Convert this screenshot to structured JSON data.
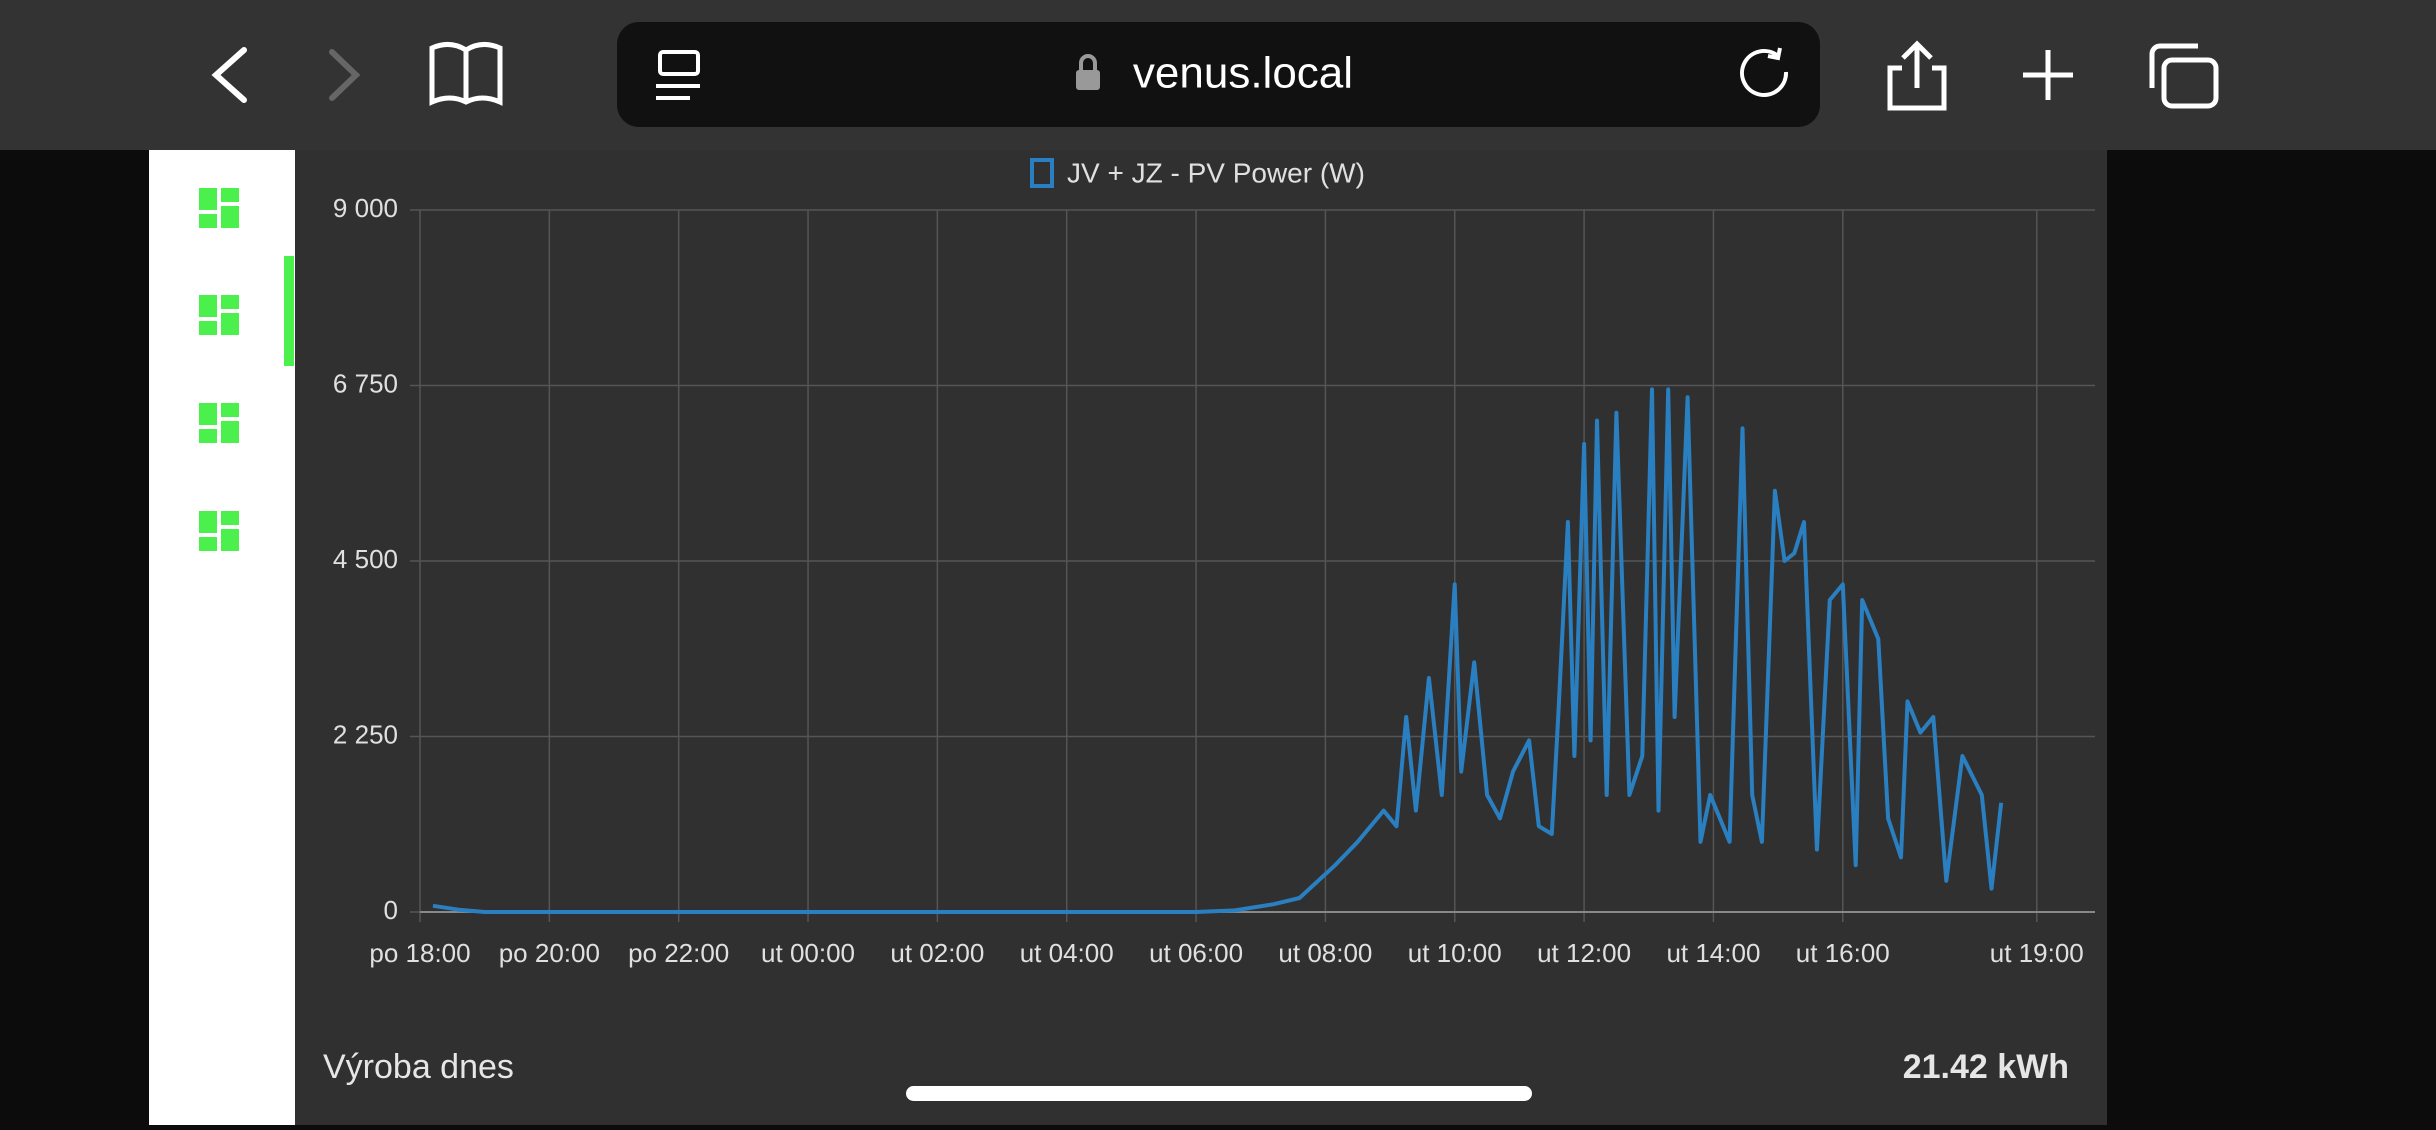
{
  "browser": {
    "url": "venus.local"
  },
  "chart_data": {
    "type": "line",
    "x": [
      18.2,
      18.6,
      19,
      25,
      30,
      30.6,
      31.2,
      31.6,
      32.15,
      32.5,
      32.9,
      33.1,
      33.25,
      33.4,
      33.6,
      33.8,
      34.0,
      34.1,
      34.3,
      34.5,
      34.7,
      34.9,
      35.15,
      35.3,
      35.5,
      35.6,
      35.75,
      35.85,
      36.0,
      36.1,
      36.2,
      36.35,
      36.5,
      36.7,
      36.9,
      37.05,
      37.15,
      37.3,
      37.4,
      37.6,
      37.8,
      37.95,
      38.05,
      38.25,
      38.45,
      38.6,
      38.75,
      38.95,
      39.1,
      39.25,
      39.4,
      39.6,
      39.8,
      40.0,
      40.2,
      40.3,
      40.55,
      40.7,
      40.9,
      41.0,
      41.2,
      41.4,
      41.6,
      41.85,
      42.15,
      42.3,
      42.45
    ],
    "series": [
      {
        "name": "JV + JZ - PV Power (W)",
        "color": "#2a7fc1",
        "values": [
          80,
          30,
          0,
          0,
          0,
          20,
          100,
          180,
          600,
          900,
          1300,
          1100,
          2500,
          1300,
          3000,
          1500,
          4200,
          1800,
          3200,
          1500,
          1200,
          1800,
          2200,
          1100,
          1000,
          2500,
          5000,
          2000,
          6000,
          2200,
          6300,
          1500,
          6400,
          1500,
          2000,
          6700,
          1300,
          6700,
          2500,
          6600,
          900,
          1500,
          1300,
          900,
          6200,
          1500,
          900,
          5400,
          4500,
          4600,
          5000,
          800,
          4000,
          4200,
          600,
          4000,
          3500,
          1200,
          700,
          2700,
          2300,
          2500,
          400,
          2000,
          1500,
          300,
          1400
        ]
      }
    ],
    "xlim": [
      18,
      43.9
    ],
    "xticks": [
      {
        "value": 18,
        "label": "po 18:00"
      },
      {
        "value": 20,
        "label": "po 20:00"
      },
      {
        "value": 22,
        "label": "po 22:00"
      },
      {
        "value": 24,
        "label": "ut 00:00"
      },
      {
        "value": 26,
        "label": "ut 02:00"
      },
      {
        "value": 28,
        "label": "ut 04:00"
      },
      {
        "value": 30,
        "label": "ut 06:00"
      },
      {
        "value": 32,
        "label": "ut 08:00"
      },
      {
        "value": 34,
        "label": "ut 10:00"
      },
      {
        "value": 36,
        "label": "ut 12:00"
      },
      {
        "value": 38,
        "label": "ut 14:00"
      },
      {
        "value": 40,
        "label": "ut 16:00"
      },
      {
        "value": 43,
        "label": "ut 19:00"
      }
    ],
    "ylim": [
      0,
      9000
    ],
    "yticks": [
      0,
      {
        "value": 2250,
        "label": "2 250"
      },
      {
        "value": 4500,
        "label": "4 500"
      },
      {
        "value": 6750,
        "label": "6 750"
      },
      {
        "value": 9000,
        "label": "9 000"
      }
    ],
    "grid": true
  },
  "footer": {
    "label": "Výroba dnes",
    "value": "21.42 kWh"
  }
}
